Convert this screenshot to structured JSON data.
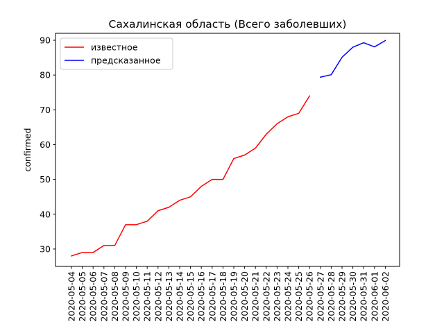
{
  "chart_data": {
    "type": "line",
    "title": "Сахалинская область (Всего заболевших)",
    "xlabel": "",
    "ylabel": "confirmed",
    "ylim": [
      25,
      92
    ],
    "yticks": [
      30,
      40,
      50,
      60,
      70,
      80,
      90
    ],
    "categories": [
      "2020-05-04",
      "2020-05-05",
      "2020-05-06",
      "2020-05-07",
      "2020-05-08",
      "2020-05-09",
      "2020-05-10",
      "2020-05-11",
      "2020-05-12",
      "2020-05-13",
      "2020-05-14",
      "2020-05-15",
      "2020-05-16",
      "2020-05-17",
      "2020-05-18",
      "2020-05-19",
      "2020-05-20",
      "2020-05-21",
      "2020-05-22",
      "2020-05-23",
      "2020-05-24",
      "2020-05-25",
      "2020-05-26",
      "2020-05-27",
      "2020-05-28",
      "2020-05-29",
      "2020-05-30",
      "2020-05-31",
      "2020-06-01",
      "2020-06-02"
    ],
    "series": [
      {
        "name": "известное",
        "color": "#ff0000",
        "x": [
          "2020-05-04",
          "2020-05-05",
          "2020-05-06",
          "2020-05-07",
          "2020-05-08",
          "2020-05-09",
          "2020-05-10",
          "2020-05-11",
          "2020-05-12",
          "2020-05-13",
          "2020-05-14",
          "2020-05-15",
          "2020-05-16",
          "2020-05-17",
          "2020-05-18",
          "2020-05-19",
          "2020-05-20",
          "2020-05-21",
          "2020-05-22",
          "2020-05-23",
          "2020-05-24",
          "2020-05-25",
          "2020-05-26"
        ],
        "values": [
          28,
          29,
          29,
          31,
          31,
          37,
          37,
          38,
          41,
          42,
          44,
          45,
          48,
          50,
          50,
          56,
          57,
          59,
          63,
          66,
          68,
          69,
          74
        ]
      },
      {
        "name": "предсказанное",
        "color": "#0000ff",
        "x": [
          "2020-05-27",
          "2020-05-28",
          "2020-05-29",
          "2020-05-30",
          "2020-05-31",
          "2020-06-01",
          "2020-06-02"
        ],
        "values": [
          79.4,
          80.1,
          85.1,
          88.0,
          89.3,
          88.1,
          89.9
        ]
      }
    ],
    "grid": false,
    "legend_position": "top-left"
  }
}
